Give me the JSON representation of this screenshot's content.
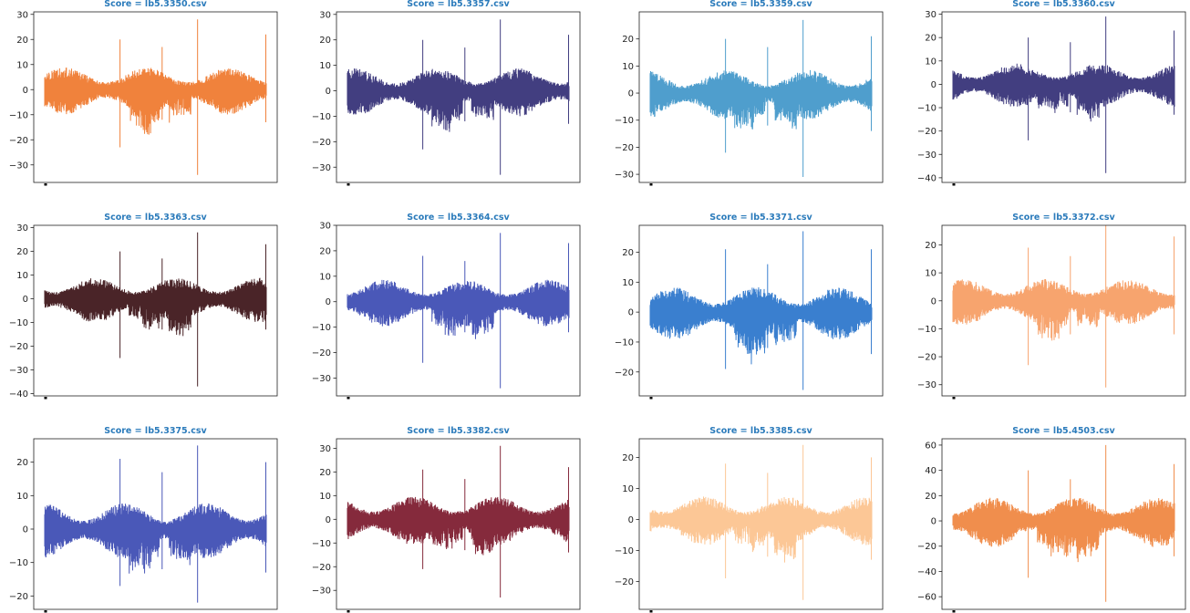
{
  "chart_data": [
    {
      "type": "line",
      "title": "Score = lb5.3350.csv",
      "color": "#f0823c",
      "ylim": [
        -37,
        31
      ],
      "yticks": [
        30,
        20,
        10,
        0,
        -10,
        -20,
        -30
      ],
      "spikes": [
        [
          0.34,
          20,
          -23
        ],
        [
          0.53,
          17,
          -12
        ],
        [
          0.69,
          28,
          -34
        ],
        [
          0.998,
          22,
          -13
        ]
      ]
    },
    {
      "type": "line",
      "title": "Score = lb5.3357.csv",
      "color": "#423e80",
      "ylim": [
        -36,
        31
      ],
      "yticks": [
        30,
        20,
        10,
        0,
        -10,
        -20,
        -30
      ],
      "spikes": [
        [
          0.34,
          20,
          -23
        ],
        [
          0.53,
          17,
          -12
        ],
        [
          0.69,
          28,
          -33
        ],
        [
          0.998,
          22,
          -13
        ]
      ]
    },
    {
      "type": "line",
      "title": "Score = lb5.3359.csv",
      "color": "#4f9ecd",
      "ylim": [
        -33,
        30
      ],
      "yticks": [
        20,
        10,
        0,
        -10,
        -20,
        -30
      ],
      "spikes": [
        [
          0.34,
          20,
          -22
        ],
        [
          0.53,
          17,
          -12
        ],
        [
          0.69,
          27,
          -31
        ],
        [
          0.998,
          21,
          -14
        ]
      ]
    },
    {
      "type": "line",
      "title": "Score = lb5.3360.csv",
      "color": "#423e80",
      "ylim": [
        -42,
        31
      ],
      "yticks": [
        30,
        20,
        10,
        0,
        -10,
        -20,
        -30,
        -40
      ],
      "spikes": [
        [
          0.34,
          20,
          -24
        ],
        [
          0.53,
          18,
          -12
        ],
        [
          0.69,
          29,
          -38
        ],
        [
          0.998,
          23,
          -13
        ]
      ]
    },
    {
      "type": "line",
      "title": "Score = lb5.3363.csv",
      "color": "#4a2428",
      "ylim": [
        -41,
        31
      ],
      "yticks": [
        30,
        20,
        10,
        0,
        -10,
        -20,
        -30,
        -40
      ],
      "spikes": [
        [
          0.34,
          20,
          -25
        ],
        [
          0.53,
          17,
          -13
        ],
        [
          0.69,
          28,
          -37
        ],
        [
          0.998,
          23,
          -13
        ]
      ]
    },
    {
      "type": "line",
      "title": "Score = lb5.3364.csv",
      "color": "#4a58b8",
      "ylim": [
        -37,
        30
      ],
      "yticks": [
        30,
        20,
        10,
        0,
        -10,
        -20,
        -30
      ],
      "spikes": [
        [
          0.34,
          18,
          -24
        ],
        [
          0.53,
          16,
          -12
        ],
        [
          0.69,
          27,
          -34
        ],
        [
          0.998,
          23,
          -12
        ]
      ]
    },
    {
      "type": "line",
      "title": "Score = lb5.3371.csv",
      "color": "#3a7fcf",
      "ylim": [
        -28,
        29
      ],
      "yticks": [
        20,
        10,
        0,
        -10,
        -20
      ],
      "spikes": [
        [
          0.34,
          21,
          -19
        ],
        [
          0.53,
          16,
          -12
        ],
        [
          0.69,
          27,
          -26
        ],
        [
          0.998,
          21,
          -14
        ]
      ]
    },
    {
      "type": "line",
      "title": "Score = lb5.3372.csv",
      "color": "#f7a46e",
      "ylim": [
        -34,
        27
      ],
      "yticks": [
        20,
        10,
        0,
        -10,
        -20,
        -30
      ],
      "spikes": [
        [
          0.34,
          19,
          -23
        ],
        [
          0.53,
          16,
          -12
        ],
        [
          0.69,
          27,
          -31
        ],
        [
          0.998,
          23,
          -12
        ]
      ]
    },
    {
      "type": "line",
      "title": "Score = lb5.3375.csv",
      "color": "#4a58b8",
      "ylim": [
        -24,
        27
      ],
      "yticks": [
        20,
        10,
        0,
        -10,
        -20
      ],
      "spikes": [
        [
          0.34,
          21,
          -17
        ],
        [
          0.53,
          17,
          -12
        ],
        [
          0.69,
          25,
          -22
        ],
        [
          0.998,
          20,
          -13
        ]
      ]
    },
    {
      "type": "line",
      "title": "Score = lb5.3382.csv",
      "color": "#852a3c",
      "ylim": [
        -38,
        34
      ],
      "yticks": [
        30,
        20,
        10,
        0,
        -10,
        -20,
        -30
      ],
      "spikes": [
        [
          0.34,
          21,
          -21
        ],
        [
          0.53,
          17,
          -13
        ],
        [
          0.69,
          31,
          -33
        ],
        [
          0.998,
          22,
          -14
        ]
      ]
    },
    {
      "type": "line",
      "title": "Score = lb5.3385.csv",
      "color": "#fcc796",
      "ylim": [
        -29,
        26
      ],
      "yticks": [
        20,
        10,
        0,
        -10,
        -20
      ],
      "spikes": [
        [
          0.34,
          18,
          -19
        ],
        [
          0.53,
          15,
          -12
        ],
        [
          0.69,
          24,
          -26
        ],
        [
          0.998,
          20,
          -13
        ]
      ]
    },
    {
      "type": "line",
      "title": "Score = lb5.4503.csv",
      "color": "#f08e4d",
      "ylim": [
        -70,
        65
      ],
      "yticks": [
        60,
        40,
        20,
        0,
        -20,
        -40,
        -60
      ],
      "spikes": [
        [
          0.34,
          40,
          -45
        ],
        [
          0.53,
          33,
          -25
        ],
        [
          0.69,
          60,
          -64
        ],
        [
          0.998,
          45,
          -28
        ]
      ]
    }
  ],
  "style": {
    "title_color": "#2b7bbb",
    "axis_color": "#222222"
  }
}
